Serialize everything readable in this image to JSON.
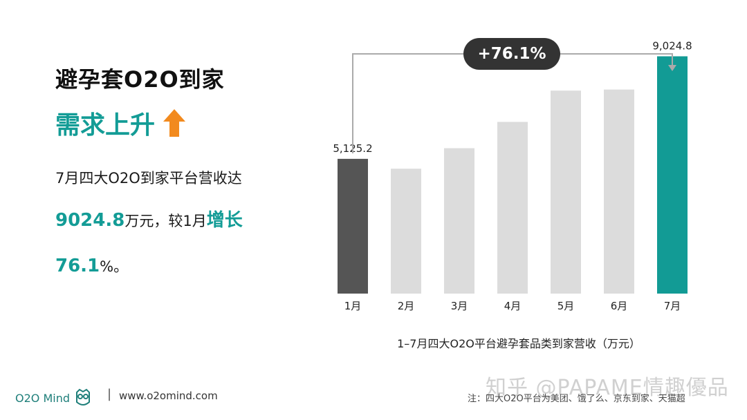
{
  "header": {
    "title": "避孕套O2O到家",
    "subtitle": "需求上升"
  },
  "description": {
    "line1": "7月四大O2O到家平台营收达",
    "value": "9024.8",
    "unit": "万元，较1月",
    "growth_word": "增长",
    "percent_value": "76.1",
    "percent_suffix": "%。"
  },
  "colors": {
    "accent": "#139c96",
    "january_bar": "#555555",
    "default_bar": "#dcdcdc",
    "july_bar": "#129b95",
    "arrow": "#f28a1e"
  },
  "chart_data": {
    "type": "bar",
    "categories": [
      "1月",
      "2月",
      "3月",
      "4月",
      "5月",
      "6月",
      "7月"
    ],
    "values": [
      5125.2,
      4750,
      5530,
      6530,
      7720,
      7760,
      9024.8
    ],
    "data_labels": [
      "5,125.2",
      "",
      "",
      "",
      "",
      "",
      "9,024.8"
    ],
    "title": "1–7月四大O2O平台避孕套品类到家营收（万元）",
    "ylim": [
      0,
      9800
    ],
    "grid": false,
    "change_annotation": "+76.1%"
  },
  "footer": {
    "logo": "O2O Mind",
    "logo_icon": "owl-icon",
    "separator": "|",
    "url": "www.o2omind.com",
    "note": "注：四大O2O平台为美团、饿了么、京东到家、天猫超",
    "watermark": "知乎 @PAPAME情趣優品"
  }
}
